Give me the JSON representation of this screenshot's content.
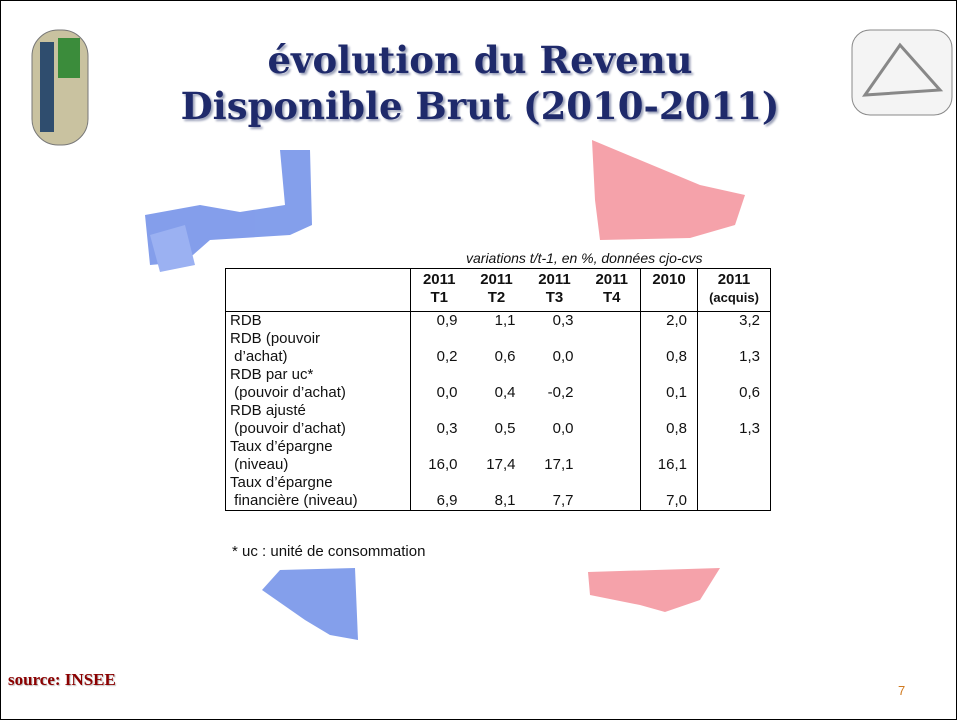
{
  "title": [
    "évolution du Revenu",
    "Disponible Brut (2010-2011)"
  ],
  "caption": "variations t/t-1, en %, données cjo-cvs",
  "table": {
    "header": [
      null,
      [
        "2011",
        "T1"
      ],
      [
        "2011",
        "T2"
      ],
      [
        "2011",
        "T3"
      ],
      [
        "2011",
        "T4"
      ],
      [
        "2010"
      ],
      [
        "2011",
        "(acquis)"
      ]
    ],
    "rows": [
      {
        "label": [
          "RDB"
        ],
        "values": [
          "0,9",
          "1,1",
          "0,3",
          null,
          "2,0",
          "3,2"
        ]
      },
      {
        "label": [
          "RDB (pouvoir",
          " d’achat)"
        ],
        "values": [
          "0,2",
          "0,6",
          "0,0",
          null,
          "0,8",
          "1,3"
        ]
      },
      {
        "label": [
          "RDB par uc*",
          " (pouvoir d’achat)"
        ],
        "values": [
          "0,0",
          "0,4",
          "-0,2",
          null,
          "0,1",
          "0,6"
        ]
      },
      {
        "label": [
          "RDB ajusté",
          " (pouvoir d’achat)"
        ],
        "values": [
          "0,3",
          "0,5",
          "0,0",
          null,
          "0,8",
          "1,3"
        ]
      },
      {
        "label": [
          "Taux d’épargne",
          " (niveau)"
        ],
        "values": [
          "16,0",
          "17,4",
          "17,1",
          null,
          "16,1",
          null
        ]
      },
      {
        "label": [
          "Taux d’épargne",
          " financière (niveau)"
        ],
        "values": [
          "6,9",
          "8,1",
          "7,7",
          null,
          "7,0",
          null
        ]
      }
    ]
  },
  "footnote": "* uc : unité de consommation",
  "source": "source: INSEE",
  "page_number": "7"
}
